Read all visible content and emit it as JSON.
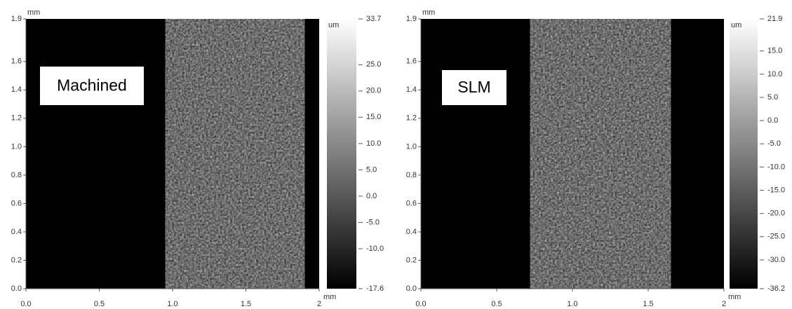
{
  "chart_data": [
    {
      "type": "image",
      "label": "Machined",
      "xunit": "mm",
      "yunit": "mm",
      "cunit": "um",
      "xlim": [
        0,
        2
      ],
      "xticks": [
        {
          "value": 0,
          "label": "0.0"
        },
        0.5,
        {
          "value": 1,
          "label": "1.0"
        },
        1.5,
        2
      ],
      "ylim": [
        0,
        1.9
      ],
      "yticks": [
        {
          "value": 0,
          "label": "0.0"
        },
        0.2,
        0.4,
        0.6,
        0.8,
        {
          "value": 1,
          "label": "1.0"
        },
        1.2,
        1.4,
        1.6,
        1.9
      ],
      "clim": [
        -17.6,
        33.7
      ],
      "cticks": [
        33.7,
        {
          "value": 25,
          "label": "25.0"
        },
        {
          "value": 20,
          "label": "20.0"
        },
        {
          "value": 15,
          "label": "15.0"
        },
        {
          "value": 10,
          "label": "10.0"
        },
        {
          "value": 5,
          "label": "5.0"
        },
        {
          "value": 0,
          "label": "0.0"
        },
        {
          "value": -5,
          "label": "-5.0"
        },
        {
          "value": -10,
          "label": "-10.0"
        },
        -17.6
      ]
    },
    {
      "type": "image",
      "label": "SLM",
      "xunit": "mm",
      "yunit": "mm",
      "cunit": "um",
      "xlim": [
        0,
        2
      ],
      "xticks": [
        {
          "value": 0,
          "label": "0.0"
        },
        0.5,
        {
          "value": 1,
          "label": "1.0"
        },
        1.5,
        2
      ],
      "ylim": [
        0,
        1.9
      ],
      "yticks": [
        {
          "value": 0,
          "label": "0.0"
        },
        0.2,
        0.4,
        0.6,
        0.8,
        {
          "value": 1,
          "label": "1.0"
        },
        1.2,
        1.4,
        1.6,
        1.9
      ],
      "clim": [
        -36.2,
        21.9
      ],
      "cticks": [
        21.9,
        {
          "value": 15,
          "label": "15.0"
        },
        {
          "value": 10,
          "label": "10.0"
        },
        {
          "value": 5,
          "label": "5.0"
        },
        {
          "value": 0,
          "label": "0.0"
        },
        {
          "value": -5,
          "label": "-5.0"
        },
        {
          "value": -10,
          "label": "-10.0"
        },
        {
          "value": -15,
          "label": "-15.0"
        },
        {
          "value": -20,
          "label": "-20.0"
        },
        {
          "value": -25,
          "label": "-25.0"
        },
        {
          "value": -30,
          "label": "-30.0"
        },
        -36.2
      ]
    }
  ]
}
